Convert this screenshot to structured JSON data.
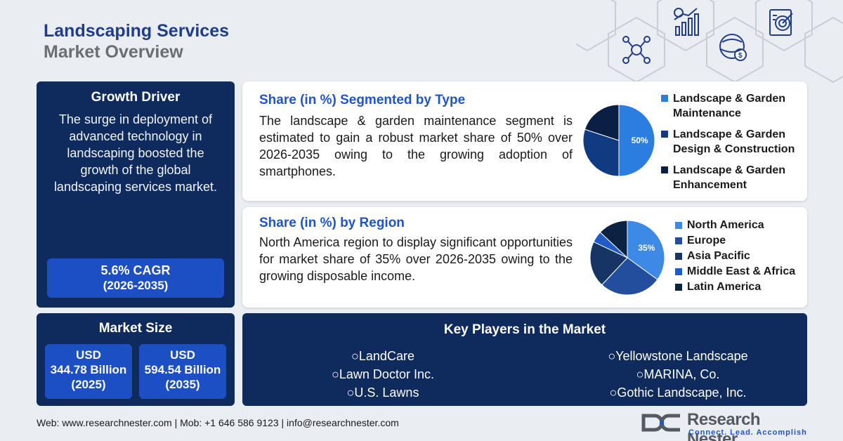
{
  "header": {
    "title": "Landscaping Services",
    "subtitle": "Market Overview"
  },
  "growth_driver": {
    "title": "Growth Driver",
    "text": "The surge in deployment of advanced technology in landscaping boosted the growth of the global landscaping services market.",
    "cagr": "5.6% CAGR",
    "cagr_period": "(2026-2035)"
  },
  "market_size": {
    "title": "Market Size",
    "boxes": [
      {
        "currency": "USD",
        "value": "344.78 Billion",
        "year": "(2025)"
      },
      {
        "currency": "USD",
        "value": "594.54 Billion",
        "year": "(2035)"
      }
    ]
  },
  "segment_type": {
    "title": "Share (in %) Segmented by Type",
    "text": "The landscape & garden maintenance segment is estimated to gain a robust market share of 50% over 2026-2035 owing to the growing adoption of smartphones."
  },
  "segment_region": {
    "title": "Share (in %) by Region",
    "text": "North America region to display significant opportunities for market share of 35% over 2026-2035 owing to the growing disposable income."
  },
  "chart_data": [
    {
      "type": "pie",
      "categories": [
        "Landscape & Garden Maintenance",
        "Landscape & Garden Design & Construction",
        "Landscape & Garden Enhancement"
      ],
      "values": [
        50,
        30,
        20
      ],
      "data_labels": [
        "50%",
        "",
        ""
      ],
      "colors": [
        "#2b7de0",
        "#103a82",
        "#0b1e44"
      ],
      "legend_position": "right"
    },
    {
      "type": "pie",
      "categories": [
        "North America",
        "Europe",
        "Asia Pacific",
        "Middle East & Africa",
        "Latin America"
      ],
      "values": [
        35,
        27,
        20,
        5,
        13
      ],
      "data_labels": [
        "35%",
        "",
        "",
        "",
        ""
      ],
      "colors": [
        "#3d8ae6",
        "#234e9e",
        "#163564",
        "#1f5cc8",
        "#0d2142"
      ],
      "legend_position": "right"
    }
  ],
  "key_players": {
    "title": "Key Players in the Market",
    "left": [
      "○LandCare",
      "○Lawn Doctor Inc.",
      "○U.S. Lawns"
    ],
    "right": [
      "○Yellowstone Landscape",
      "○MARINA, Co.",
      "○Gothic Landscape, Inc."
    ]
  },
  "footer": {
    "contact": "Web: www.researchnester.com | Mob: +1 646 586 9123 | info@researchnester.com"
  },
  "logo": {
    "name": "Research Nester",
    "tagline": "Connect. Lead. Accomplish"
  },
  "icons": [
    "network-people-icon",
    "growth-chart-icon",
    "global-finance-icon",
    "target-report-icon"
  ]
}
